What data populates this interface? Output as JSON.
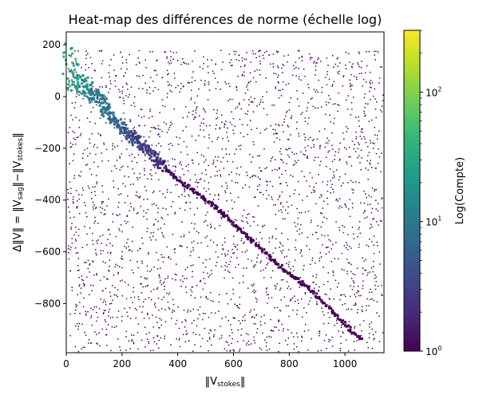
{
  "chart_data": {
    "type": "heatmap",
    "title": "Heat-map des différences de norme (échelle log)",
    "xlabel": "‖V_stokes‖",
    "ylabel": "Δ‖V‖ = ‖V_sag‖−‖V_stokes‖",
    "xlim": [
      0,
      1140
    ],
    "ylim": [
      -990,
      250
    ],
    "x_ticks": [
      0,
      200,
      400,
      600,
      800,
      1000
    ],
    "x_tick_labels": [
      "0",
      "200",
      "400",
      "600",
      "800",
      "1000"
    ],
    "y_ticks": [
      200,
      0,
      -200,
      -400,
      -600,
      -800
    ],
    "y_tick_labels": [
      "200",
      "0",
      "−200",
      "−400",
      "−600",
      "−800"
    ],
    "colorbar": {
      "label": "Log(Compte)",
      "scale": "log",
      "range": [
        1,
        300
      ],
      "ticks": [
        1,
        10,
        100
      ],
      "tick_labels": [
        "10",
        "10",
        "10"
      ],
      "tick_exponents": [
        "0",
        "1",
        "2"
      ],
      "colormap": [
        "#440154",
        "#482878",
        "#3e4989",
        "#31688e",
        "#26828e",
        "#1f9e89",
        "#35b779",
        "#6ece58",
        "#b5de2b",
        "#fde725"
      ]
    },
    "band": {
      "description_counts": [
        {
          "x": 8,
          "y": 180,
          "count": 30
        },
        {
          "x": 10,
          "y": 100,
          "count": 60
        },
        {
          "x": 20,
          "y": 80,
          "count": 40
        },
        {
          "x": 40,
          "y": 60,
          "count": 25
        },
        {
          "x": 60,
          "y": 40,
          "count": 18
        },
        {
          "x": 90,
          "y": 20,
          "count": 15
        },
        {
          "x": 120,
          "y": -20,
          "count": 12
        },
        {
          "x": 150,
          "y": -60,
          "count": 10
        },
        {
          "x": 180,
          "y": -100,
          "count": 8
        },
        {
          "x": 210,
          "y": -130,
          "count": 6
        },
        {
          "x": 240,
          "y": -160,
          "count": 5
        },
        {
          "x": 270,
          "y": -180,
          "count": 4
        },
        {
          "x": 300,
          "y": -220,
          "count": 3
        },
        {
          "x": 350,
          "y": -270,
          "count": 2
        },
        {
          "x": 400,
          "y": -320,
          "count": 1
        },
        {
          "x": 480,
          "y": -380,
          "count": 1
        },
        {
          "x": 560,
          "y": -450,
          "count": 1
        },
        {
          "x": 650,
          "y": -540,
          "count": 1
        },
        {
          "x": 750,
          "y": -640,
          "count": 1
        },
        {
          "x": 880,
          "y": -750,
          "count": 1
        },
        {
          "x": 1000,
          "y": -880,
          "count": 1
        },
        {
          "x": 1060,
          "y": -940,
          "count": 1
        }
      ]
    }
  }
}
